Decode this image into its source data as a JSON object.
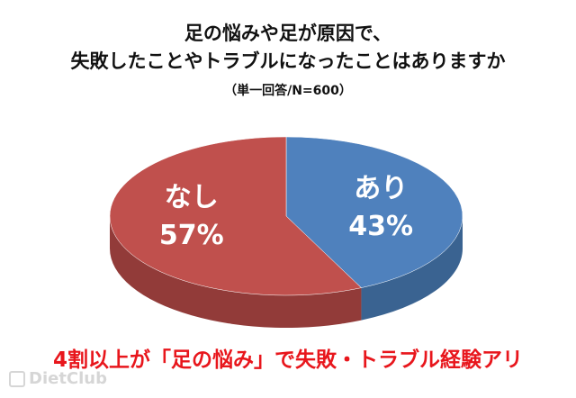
{
  "chart_data": {
    "type": "pie",
    "title_line1": "足の悩みや足が原因で、",
    "title_line2": "失敗したことやトラブルになったことはありますか",
    "subtitle": "（単一回答/N=600）",
    "slices": [
      {
        "name": "あり",
        "value": 43,
        "label": "43%",
        "color": "#4f81bd",
        "side_color": "#3a6391"
      },
      {
        "name": "なし",
        "value": 57,
        "label": "57%",
        "color": "#c0504d",
        "side_color": "#923b39"
      }
    ],
    "headline": "4割以上が「足の悩み」で失敗・トラブル経験アリ"
  },
  "watermark": "DietClub"
}
